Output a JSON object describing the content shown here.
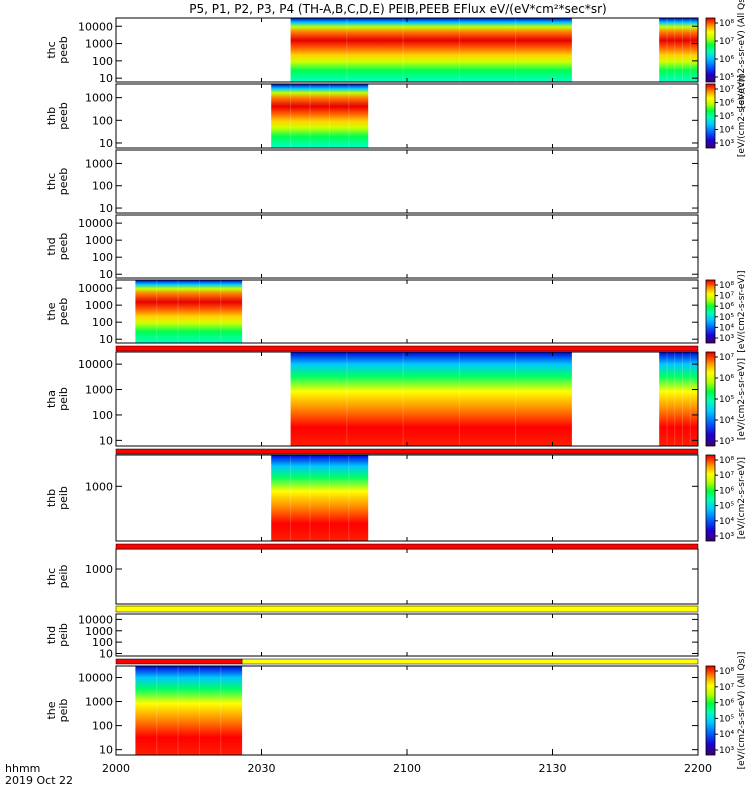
{
  "title": "P5, P1, P2, P3, P4 (TH-A,B,C,D,E) PEIB,PEEB EFlux eV/(eV*cm²*sec*sr)",
  "colors": {
    "background": "#ffffff",
    "axis": "#000000",
    "bar_red": "#ff0000",
    "bar_yellow": "#ffff00",
    "bar_black": "#000000"
  },
  "xaxis": {
    "ticks": [
      "2000",
      "2030",
      "2100",
      "2130",
      "2200"
    ],
    "tick_values": [
      0,
      30,
      60,
      90,
      120
    ],
    "label_line1": "hhmm",
    "label_line2": "2019 Oct 22"
  },
  "colorbar_unit_labels": {
    "eflux_all_qs": "[eV/(cm2-s-sr-eV) (All Qs)]",
    "eflux": "[eV/(cm2-s-sr-eV)]"
  },
  "chart_data": {
    "type": "heatmap",
    "x_units": "minutes after 20:00 UT",
    "xlim": [
      0,
      120
    ],
    "colormap": [
      "#3c006e",
      "#1e00d2",
      "#0064ff",
      "#00c8ff",
      "#00ffb4",
      "#00ff3c",
      "#b4ff00",
      "#ffff00",
      "#ffa000",
      "#ff3c00",
      "#e10000"
    ],
    "panels": [
      {
        "probe": "thc",
        "instrument": "peeb",
        "ylabel_line1": "thc",
        "ylabel_line2": "peeb",
        "ylog": true,
        "ylim": [
          6,
          30000
        ],
        "yticks": [
          10,
          100,
          1000,
          10000
        ],
        "ytick_labels": [
          "10",
          "100",
          "1000",
          "10000"
        ],
        "data_intervals": [
          [
            36,
            94
          ],
          [
            112,
            120
          ]
        ],
        "colorbar": {
          "tick_labels": [
            "10⁵",
            "10⁶",
            "10⁷",
            "10⁸"
          ],
          "log_range": [
            3,
            8.6
          ],
          "unit_key": "eflux_all_qs"
        }
      },
      {
        "probe": "thb",
        "instrument": "peeb",
        "ylabel_line1": "thb",
        "ylabel_line2": "peeb",
        "ylog": true,
        "ylim": [
          6,
          4000
        ],
        "yticks": [
          10,
          100,
          1000
        ],
        "ytick_labels": [
          "10",
          "100",
          "1000"
        ],
        "data_intervals": [
          [
            32,
            52
          ]
        ],
        "colorbar": {
          "tick_labels": [
            "10³",
            "10⁴",
            "10⁵",
            "10⁶",
            "10⁷"
          ],
          "log_range": [
            2.6,
            7.6
          ],
          "unit_key": "eflux"
        }
      },
      {
        "probe": "thc",
        "instrument": "peeb",
        "ylabel_line1": "thc",
        "ylabel_line2": "peeb",
        "ylog": true,
        "ylim": [
          6,
          4000
        ],
        "yticks": [
          10,
          100,
          1000
        ],
        "ytick_labels": [
          "10",
          "100",
          "1000"
        ],
        "data_intervals": []
      },
      {
        "probe": "thd",
        "instrument": "peeb",
        "ylabel_line1": "thd",
        "ylabel_line2": "peeb",
        "ylog": true,
        "ylim": [
          6,
          30000
        ],
        "yticks": [
          10,
          100,
          1000,
          10000
        ],
        "ytick_labels": [
          "10",
          "100",
          "1000",
          "10000"
        ],
        "data_intervals": []
      },
      {
        "probe": "the",
        "instrument": "peeb",
        "ylabel_line1": "the",
        "ylabel_line2": "peeb",
        "ylog": true,
        "ylim": [
          6,
          30000
        ],
        "yticks": [
          10,
          100,
          1000,
          10000
        ],
        "ytick_labels": [
          "10",
          "100",
          "1000",
          "10000"
        ],
        "data_intervals": [
          [
            4,
            26
          ]
        ],
        "colorbar": {
          "tick_labels": [
            "10³",
            "10⁴",
            "10⁵",
            "10⁶",
            "10⁷",
            "10⁸"
          ],
          "log_range": [
            2.6,
            8.6
          ],
          "unit_key": "eflux"
        }
      },
      {
        "probe": "tha",
        "instrument": "peib",
        "ylabel_line1": "tha",
        "ylabel_line2": "peib",
        "ylog": true,
        "ylim": [
          6,
          30000
        ],
        "yticks": [
          10,
          100,
          1000,
          10000
        ],
        "ytick_labels": [
          "10",
          "100",
          "1000",
          "10000"
        ],
        "data_intervals": [
          [
            36,
            94
          ],
          [
            112,
            120
          ]
        ],
        "colorbar": {
          "tick_labels": [
            "10³",
            "10⁴",
            "10⁵",
            "10⁶",
            "10⁷"
          ],
          "log_range": [
            2.6,
            7.6
          ],
          "unit_key": "eflux"
        }
      },
      {
        "probe": "thb",
        "instrument": "peib",
        "ylabel_line1": "thb",
        "ylabel_line2": "peib",
        "ylog": true,
        "ylim": [
          60,
          5000
        ],
        "yticks": [
          1000
        ],
        "ytick_labels": [
          "1000"
        ],
        "data_intervals": [
          [
            32,
            52
          ]
        ],
        "colorbar": {
          "tick_labels": [
            "10³",
            "10⁴",
            "10⁵",
            "10⁶",
            "10⁷",
            "10⁸"
          ],
          "log_range": [
            2.6,
            8.6
          ],
          "unit_key": "eflux"
        }
      },
      {
        "probe": "thc",
        "instrument": "peib",
        "ylabel_line1": "thc",
        "ylabel_line2": "peib",
        "ylog": true,
        "ylim": [
          60,
          5000
        ],
        "yticks": [
          1000
        ],
        "ytick_labels": [
          "1000"
        ],
        "data_intervals": []
      },
      {
        "probe": "thd",
        "instrument": "peib",
        "ylabel_line1": "thd",
        "ylabel_line2": "peib",
        "ylog": true,
        "ylim": [
          6,
          30000
        ],
        "yticks": [
          10,
          100,
          1000,
          10000
        ],
        "ytick_labels": [
          "10",
          "100",
          "1000",
          "10000"
        ],
        "data_intervals": []
      },
      {
        "probe": "the",
        "instrument": "peib",
        "ylabel_line1": "the",
        "ylabel_line2": "peib",
        "ylog": true,
        "ylim": [
          6,
          30000
        ],
        "yticks": [
          10,
          100,
          1000,
          10000
        ],
        "ytick_labels": [
          "10",
          "100",
          "1000",
          "10000"
        ],
        "data_intervals": [
          [
            4,
            26
          ]
        ],
        "colorbar": {
          "tick_labels": [
            "10³",
            "10⁴",
            "10⁵",
            "10⁶",
            "10⁷",
            "10⁸"
          ],
          "log_range": [
            2.6,
            8.6
          ],
          "unit_key": "eflux_all_qs"
        }
      }
    ],
    "status_bars": [
      {
        "color": "red",
        "x_range": [
          0,
          120
        ]
      },
      {
        "color": "red",
        "x_range": [
          0,
          120
        ]
      },
      {
        "color": "red",
        "x_range": [
          0,
          120
        ]
      },
      {
        "color": "yellow",
        "x_range": [
          0,
          120
        ]
      },
      {
        "color": "red",
        "x_range": [
          0,
          26
        ]
      },
      {
        "color": "yellow",
        "x_range": [
          26,
          120
        ]
      }
    ]
  }
}
